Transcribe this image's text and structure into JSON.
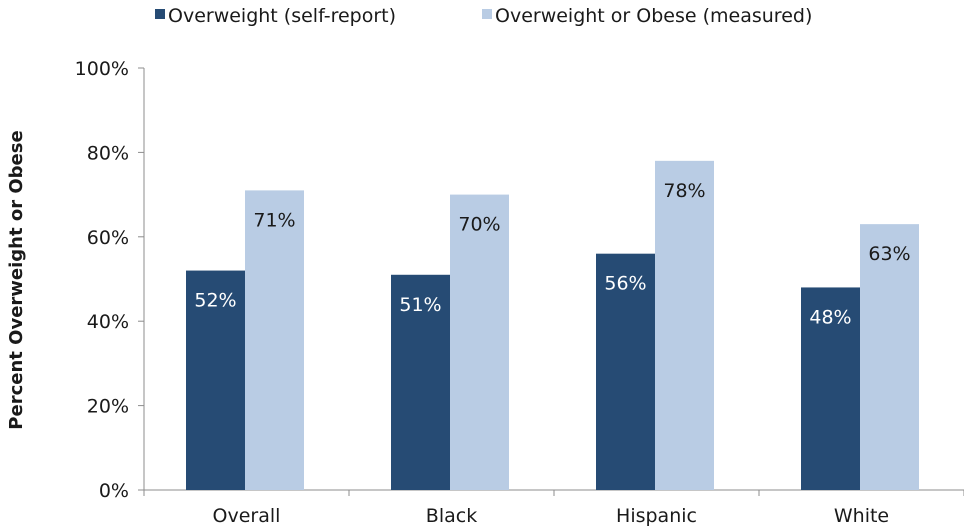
{
  "chart_data": {
    "type": "bar",
    "title": "",
    "xlabel": "",
    "ylabel": "Percent Overweight or Obese",
    "categories": [
      "Overall",
      "Black",
      "Hispanic",
      "White"
    ],
    "series": [
      {
        "name": "Overweight (self-report)",
        "values": [
          52,
          51,
          56,
          48
        ],
        "labels": [
          "52%",
          "51%",
          "56%",
          "48%"
        ],
        "color": "#264b74",
        "label_color": "#ffffff"
      },
      {
        "name": "Overweight or Obese (measured)",
        "values": [
          71,
          70,
          78,
          63
        ],
        "labels": [
          "71%",
          "70%",
          "78%",
          "63%"
        ],
        "color": "#b9cce4",
        "label_color": "#1a1a1a"
      }
    ],
    "ylim": [
      0,
      100
    ],
    "yticks": [
      0,
      20,
      40,
      60,
      80,
      100
    ],
    "ytick_labels": [
      "0%",
      "20%",
      "40%",
      "60%",
      "80%",
      "100%"
    ],
    "grid": false,
    "legend_position": "top"
  }
}
